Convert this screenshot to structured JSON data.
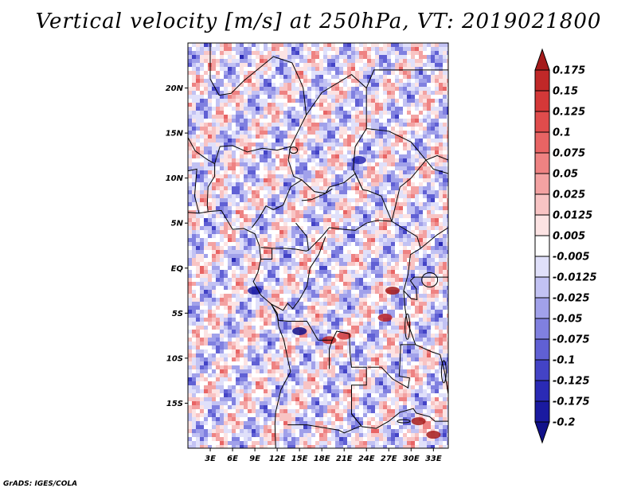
{
  "title": "Vertical velocity [m/s] at 250hPa, VT: 2019021800",
  "credit": "GrADS: IGES/COLA",
  "map": {
    "lon_range": [
      0,
      35
    ],
    "lat_range": [
      -20,
      25
    ],
    "lat_ticks": [
      {
        "lat": 20,
        "label": "20N"
      },
      {
        "lat": 15,
        "label": "15N"
      },
      {
        "lat": 10,
        "label": "10N"
      },
      {
        "lat": 5,
        "label": "5N"
      },
      {
        "lat": 0,
        "label": "EQ"
      },
      {
        "lat": -5,
        "label": "5S"
      },
      {
        "lat": -10,
        "label": "10S"
      },
      {
        "lat": -15,
        "label": "15S"
      }
    ],
    "lon_ticks": [
      {
        "lon": 3,
        "label": "3E"
      },
      {
        "lon": 6,
        "label": "6E"
      },
      {
        "lon": 9,
        "label": "9E"
      },
      {
        "lon": 12,
        "label": "12E"
      },
      {
        "lon": 15,
        "label": "15E"
      },
      {
        "lon": 18,
        "label": "18E"
      },
      {
        "lon": 21,
        "label": "21E"
      },
      {
        "lon": 24,
        "label": "24E"
      },
      {
        "lon": 27,
        "label": "27E"
      },
      {
        "lon": 30,
        "label": "30E"
      },
      {
        "lon": 33,
        "label": "33E"
      }
    ]
  },
  "colorbar": {
    "labels": [
      "0.175",
      "0.15",
      "0.125",
      "0.1",
      "0.075",
      "0.05",
      "0.025",
      "0.0125",
      "0.005",
      "-0.005",
      "-0.0125",
      "-0.025",
      "-0.05",
      "-0.075",
      "-0.1",
      "-0.125",
      "-0.175",
      "-0.2"
    ],
    "colors": [
      "#a51b1b",
      "#c02828",
      "#d43838",
      "#e04c4c",
      "#e86464",
      "#ee8282",
      "#f3a2a2",
      "#f8c4c4",
      "#fce3e3",
      "#ffffff",
      "#e0e0fa",
      "#c2c2f3",
      "#a1a1ea",
      "#8080e0",
      "#6060d4",
      "#4343c6",
      "#2a2ab5",
      "#1a1aa0",
      "#11118a"
    ]
  }
}
